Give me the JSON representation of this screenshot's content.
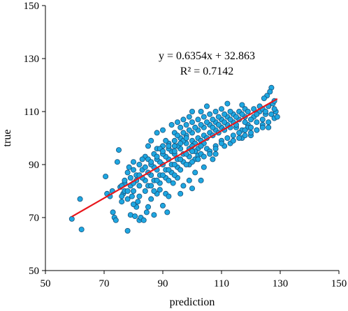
{
  "chart_data": {
    "type": "scatter",
    "xlabel": "prediction",
    "ylabel": "true",
    "xlim": [
      50,
      150
    ],
    "ylim": [
      50,
      150
    ],
    "x_ticks": [
      "50",
      "70",
      "90",
      "110",
      "130",
      "150"
    ],
    "y_ticks": [
      "50",
      "70",
      "90",
      "110",
      "130",
      "150"
    ],
    "grid": false,
    "colors": {
      "point_fill": "#1ea7e1",
      "point_stroke": "#16507a",
      "fit_line": "#e8161b"
    },
    "annotation": {
      "equation": "y = 0.6354x + 32.863",
      "r_squared": "R² = 0.7142"
    },
    "fit_line": {
      "slope": 0.6354,
      "intercept": 32.863,
      "x_range": [
        59,
        129
      ]
    },
    "series": [
      {
        "points": [
          [
            59,
            69.5
          ],
          [
            61.8,
            77
          ],
          [
            62.3,
            65.5
          ],
          [
            70.5,
            85.5
          ],
          [
            71,
            79
          ],
          [
            72,
            78
          ],
          [
            72.8,
            80
          ],
          [
            73,
            72
          ],
          [
            73.5,
            70
          ],
          [
            74,
            69
          ],
          [
            74.5,
            91
          ],
          [
            75,
            95.5
          ],
          [
            75.5,
            81.5
          ],
          [
            76,
            76
          ],
          [
            76.5,
            79
          ],
          [
            77,
            83
          ],
          [
            78,
            65
          ],
          [
            78,
            87
          ],
          [
            78.5,
            89
          ],
          [
            79,
            71
          ],
          [
            79.5,
            78
          ],
          [
            80,
            91
          ],
          [
            80.5,
            70.5
          ],
          [
            81,
            74
          ],
          [
            81.5,
            76
          ],
          [
            82,
            69
          ],
          [
            82.5,
            70
          ],
          [
            83.5,
            69
          ],
          [
            84.5,
            72
          ],
          [
            85,
            74
          ],
          [
            86,
            77
          ],
          [
            87,
            71
          ],
          [
            88,
            79
          ],
          [
            89,
            80.5
          ],
          [
            90,
            74.5
          ],
          [
            91,
            79
          ],
          [
            91.5,
            72
          ],
          [
            92,
            78
          ],
          [
            93.5,
            83
          ],
          [
            95,
            85
          ],
          [
            96,
            79
          ],
          [
            97,
            82
          ],
          [
            99,
            84
          ],
          [
            100,
            81
          ],
          [
            101,
            87
          ],
          [
            102,
            93.5
          ],
          [
            103,
            84
          ],
          [
            104,
            89
          ],
          [
            107,
            92
          ],
          [
            108,
            94
          ],
          [
            111,
            97
          ],
          [
            113,
            98
          ],
          [
            115,
            104
          ],
          [
            117,
            100
          ],
          [
            119,
            105
          ],
          [
            120,
            101
          ],
          [
            121,
            108
          ],
          [
            122,
            103
          ],
          [
            124,
            105
          ],
          [
            126,
            104
          ],
          [
            127,
            119
          ],
          [
            126.5,
            117.5
          ],
          [
            125.5,
            116
          ],
          [
            124.5,
            115
          ],
          [
            127.5,
            113
          ],
          [
            128.5,
            110
          ],
          [
            128,
            107.5
          ],
          [
            125,
            109
          ],
          [
            123,
            110
          ],
          [
            118,
            111
          ],
          [
            112,
            113
          ],
          [
            117,
            112.5
          ],
          [
            105,
            112
          ],
          [
            103,
            110
          ],
          [
            99,
            108
          ],
          [
            97,
            107
          ],
          [
            95,
            106
          ],
          [
            93,
            105
          ],
          [
            90,
            103
          ],
          [
            88,
            102
          ],
          [
            86,
            99
          ],
          [
            85,
            97
          ],
          [
            84,
            93
          ],
          [
            83,
            92
          ],
          [
            82,
            90
          ],
          [
            80,
            88
          ],
          [
            79,
            85
          ],
          [
            77,
            84
          ],
          [
            76,
            82
          ],
          [
            88,
            96
          ],
          [
            90,
            97
          ],
          [
            92,
            98
          ],
          [
            94,
            99
          ],
          [
            96,
            100
          ],
          [
            98,
            101
          ],
          [
            100,
            102
          ],
          [
            102,
            103
          ],
          [
            104,
            104
          ],
          [
            106,
            105
          ],
          [
            108,
            106
          ],
          [
            110,
            107
          ],
          [
            112,
            108
          ],
          [
            114,
            109
          ],
          [
            116,
            110
          ],
          [
            118,
            108
          ],
          [
            120,
            107
          ],
          [
            122,
            109
          ],
          [
            124,
            111
          ],
          [
            126,
            112
          ],
          [
            128,
            114
          ],
          [
            80,
            80
          ],
          [
            82,
            82
          ],
          [
            84,
            84
          ],
          [
            86,
            86
          ],
          [
            88,
            88
          ],
          [
            90,
            90
          ],
          [
            92,
            92
          ],
          [
            94,
            94
          ],
          [
            96,
            96
          ],
          [
            98,
            98
          ],
          [
            100,
            99
          ],
          [
            102,
            100
          ],
          [
            104,
            101
          ],
          [
            106,
            102
          ],
          [
            108,
            103
          ],
          [
            110,
            104
          ],
          [
            112,
            105
          ],
          [
            114,
            106
          ],
          [
            116,
            107
          ],
          [
            118,
            106
          ],
          [
            81,
            84
          ],
          [
            83,
            85
          ],
          [
            85,
            87
          ],
          [
            87,
            89
          ],
          [
            89,
            91
          ],
          [
            91,
            93
          ],
          [
            93,
            95
          ],
          [
            95,
            97
          ],
          [
            97,
            99
          ],
          [
            99,
            96
          ],
          [
            101,
            98
          ],
          [
            103,
            99
          ],
          [
            105,
            100
          ],
          [
            107,
            101
          ],
          [
            109,
            102
          ],
          [
            111,
            103
          ],
          [
            113,
            104
          ],
          [
            115,
            105
          ],
          [
            117,
            103
          ],
          [
            119,
            104
          ],
          [
            86,
            90
          ],
          [
            88,
            92
          ],
          [
            90,
            94
          ],
          [
            92,
            96
          ],
          [
            94,
            97
          ],
          [
            96,
            98
          ],
          [
            98,
            100
          ],
          [
            100,
            97
          ],
          [
            102,
            96
          ],
          [
            104,
            98
          ],
          [
            85,
            82
          ],
          [
            87,
            84
          ],
          [
            89,
            86
          ],
          [
            91,
            88
          ],
          [
            93,
            90
          ],
          [
            95,
            92
          ],
          [
            97,
            94
          ],
          [
            99,
            93
          ],
          [
            101,
            95
          ],
          [
            103,
            97
          ],
          [
            87,
            80
          ],
          [
            89,
            83
          ],
          [
            91,
            85
          ],
          [
            93,
            87
          ],
          [
            95,
            89
          ],
          [
            97,
            91
          ],
          [
            99,
            90
          ],
          [
            101,
            92
          ],
          [
            103,
            94
          ],
          [
            105,
            96
          ],
          [
            106,
            95
          ],
          [
            108,
            97
          ],
          [
            110,
            99
          ],
          [
            112,
            100
          ],
          [
            114,
            101
          ],
          [
            116,
            102
          ],
          [
            118,
            103
          ],
          [
            120,
            104
          ],
          [
            122,
            106
          ],
          [
            124,
            107
          ],
          [
            96,
            104
          ],
          [
            98,
            105
          ],
          [
            100,
            106
          ],
          [
            102,
            107
          ],
          [
            104,
            108
          ],
          [
            106,
            109
          ],
          [
            108,
            110
          ],
          [
            110,
            111
          ],
          [
            100,
            110
          ],
          [
            94,
            102
          ],
          [
            91,
            99
          ],
          [
            89,
            96
          ],
          [
            87,
            94
          ],
          [
            85,
            92
          ],
          [
            83,
            88
          ],
          [
            81,
            86
          ],
          [
            79,
            82
          ],
          [
            77,
            80
          ],
          [
            78,
            77
          ],
          [
            80,
            75
          ],
          [
            82,
            78
          ],
          [
            84,
            80
          ],
          [
            86,
            82
          ],
          [
            88,
            84
          ],
          [
            90,
            86
          ],
          [
            92,
            88
          ],
          [
            94,
            90
          ],
          [
            96,
            92
          ],
          [
            98,
            94
          ],
          [
            100,
            95
          ],
          [
            107,
            104
          ],
          [
            109,
            105
          ],
          [
            111,
            106
          ],
          [
            113,
            107
          ],
          [
            115,
            108
          ],
          [
            117,
            109
          ],
          [
            119,
            110
          ],
          [
            121,
            111
          ],
          [
            123,
            112
          ],
          [
            125,
            110
          ],
          [
            95,
            101
          ],
          [
            97,
            102
          ],
          [
            99,
            103
          ],
          [
            101,
            104
          ],
          [
            103,
            105
          ],
          [
            105,
            106
          ],
          [
            107,
            107
          ],
          [
            109,
            108
          ],
          [
            111,
            109
          ],
          [
            113,
            110
          ],
          [
            92,
            84
          ],
          [
            94,
            86
          ],
          [
            96,
            88
          ],
          [
            98,
            90
          ],
          [
            100,
            91
          ],
          [
            102,
            92
          ],
          [
            104,
            93
          ],
          [
            106,
            94
          ],
          [
            108,
            96
          ],
          [
            110,
            98
          ],
          [
            114,
            99
          ],
          [
            116,
            100
          ],
          [
            118,
            101
          ],
          [
            120,
            102
          ],
          [
            122,
            103
          ],
          [
            124,
            104
          ],
          [
            126,
            106
          ],
          [
            127,
            109
          ],
          [
            128,
            111
          ],
          [
            129,
            108
          ],
          [
            76,
            78
          ],
          [
            78,
            80
          ],
          [
            80,
            83
          ],
          [
            82,
            86
          ],
          [
            84,
            89
          ],
          [
            86,
            91
          ],
          [
            88,
            93
          ],
          [
            90,
            95
          ],
          [
            92,
            97
          ],
          [
            94,
            95
          ]
        ]
      }
    ]
  }
}
